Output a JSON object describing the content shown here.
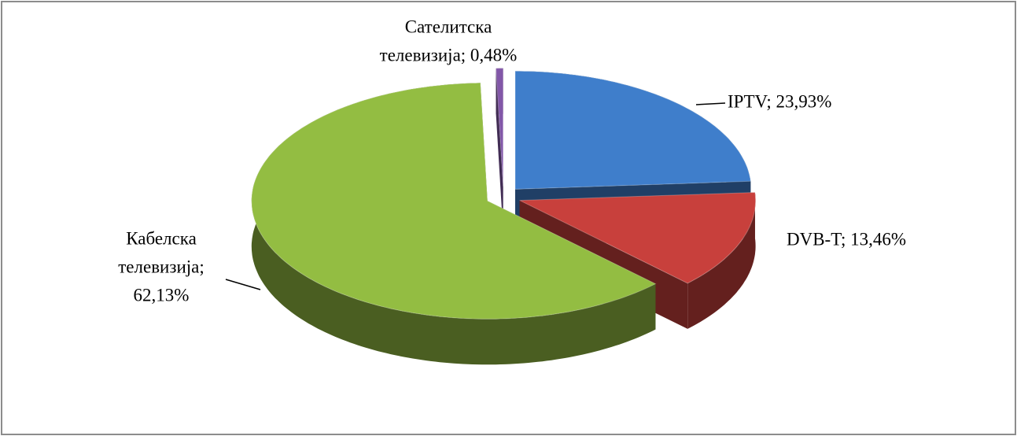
{
  "chart_data": {
    "type": "pie3d",
    "values": [
      23.93,
      13.46,
      62.13,
      0.48
    ],
    "value_labels": [
      [
        "IPTV; 23,93%"
      ],
      [
        "DVB-T; 13,46%"
      ],
      [
        "Кабелска",
        "телевизија;",
        "62,13%"
      ],
      [
        "Сателитска",
        "телевизија; 0,48%"
      ]
    ],
    "colors": [
      "#3f7ecb",
      "#c8403c",
      "#93bd42",
      "#8257a8"
    ]
  }
}
